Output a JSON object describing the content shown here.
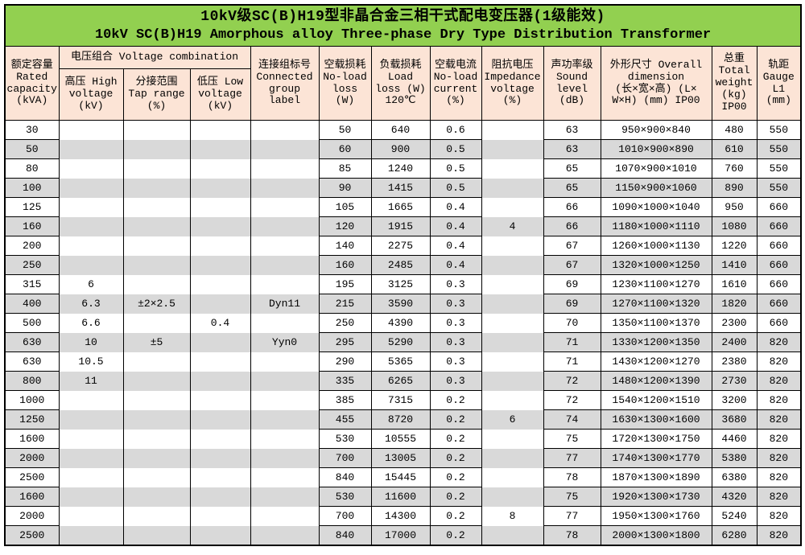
{
  "title": {
    "zh": "10kV级SC(B)H19型非晶合金三相干式配电变压器(1级能效)",
    "en": "10kV SC(B)H19 Amorphous alloy Three-phase Dry Type Distribution Transformer"
  },
  "colors": {
    "title_bg": "#92D050",
    "header_bg": "#FCE4D6",
    "row_alt_bg": "#D9D9D9",
    "border": "#000000"
  },
  "table": {
    "group_header": "电压组合 Voltage combination",
    "headers": {
      "rated_capacity": "额定容量\nRated\ncapacity\n(kVA)",
      "high_voltage": "高压 High\nvoltage\n(kV)",
      "tap_range": "分接范围\nTap range\n(%)",
      "low_voltage": "低压 Low\nvoltage\n(kV)",
      "connected_group": "连接组标号\nConnected\ngroup\nlabel",
      "no_load_loss": "空载损耗\nNo-load\nloss\n(W)",
      "load_loss": "负载损耗\nLoad\nloss (W)\n120℃",
      "no_load_current": "空载电流\nNo-load\ncurrent\n(%)",
      "impedance_voltage": "阻抗电压\nImpedance\nvoltage\n(%)",
      "sound_level": "声功率级\nSound\nlevel\n(dB)",
      "overall_dimension": "外形尺寸 Overall\ndimension\n(长×宽×高) (L×\nW×H) (mm) IP00",
      "total_weight": "总重\nTotal\nweight\n(kg)\nIP00",
      "gauge": "轨距\nGauge\nL1\n(mm)"
    },
    "rows": [
      [
        "30",
        "",
        "",
        "",
        "",
        "50",
        "640",
        "0.6",
        "",
        "63",
        "950×900×840",
        "480",
        "550"
      ],
      [
        "50",
        "",
        "",
        "",
        "",
        "60",
        "900",
        "0.5",
        "",
        "63",
        "1010×900×890",
        "610",
        "550"
      ],
      [
        "80",
        "",
        "",
        "",
        "",
        "85",
        "1240",
        "0.5",
        "",
        "65",
        "1070×900×1010",
        "760",
        "550"
      ],
      [
        "100",
        "",
        "",
        "",
        "",
        "90",
        "1415",
        "0.5",
        "",
        "65",
        "1150×900×1060",
        "890",
        "550"
      ],
      [
        "125",
        "",
        "",
        "",
        "",
        "105",
        "1665",
        "0.4",
        "",
        "66",
        "1090×1000×1040",
        "950",
        "660"
      ],
      [
        "160",
        "",
        "",
        "",
        "",
        "120",
        "1915",
        "0.4",
        "4",
        "66",
        "1180×1000×1110",
        "1080",
        "660"
      ],
      [
        "200",
        "",
        "",
        "",
        "",
        "140",
        "2275",
        "0.4",
        "",
        "67",
        "1260×1000×1130",
        "1220",
        "660"
      ],
      [
        "250",
        "",
        "",
        "",
        "",
        "160",
        "2485",
        "0.4",
        "",
        "67",
        "1320×1000×1250",
        "1410",
        "660"
      ],
      [
        "315",
        "6",
        "",
        "",
        "",
        "195",
        "3125",
        "0.3",
        "",
        "69",
        "1230×1100×1270",
        "1610",
        "660"
      ],
      [
        "400",
        "6.3",
        "±2×2.5",
        "",
        "Dyn11",
        "215",
        "3590",
        "0.3",
        "",
        "69",
        "1270×1100×1320",
        "1820",
        "660"
      ],
      [
        "500",
        "6.6",
        "",
        "0.4",
        "",
        "250",
        "4390",
        "0.3",
        "",
        "70",
        "1350×1100×1370",
        "2300",
        "660"
      ],
      [
        "630",
        "10",
        "±5",
        "",
        "Yyn0",
        "295",
        "5290",
        "0.3",
        "",
        "71",
        "1330×1200×1350",
        "2400",
        "820"
      ],
      [
        "630",
        "10.5",
        "",
        "",
        "",
        "290",
        "5365",
        "0.3",
        "",
        "71",
        "1430×1200×1270",
        "2380",
        "820"
      ],
      [
        "800",
        "11",
        "",
        "",
        "",
        "335",
        "6265",
        "0.3",
        "",
        "72",
        "1480×1200×1390",
        "2730",
        "820"
      ],
      [
        "1000",
        "",
        "",
        "",
        "",
        "385",
        "7315",
        "0.2",
        "",
        "72",
        "1540×1200×1510",
        "3200",
        "820"
      ],
      [
        "1250",
        "",
        "",
        "",
        "",
        "455",
        "8720",
        "0.2",
        "6",
        "74",
        "1630×1300×1600",
        "3680",
        "820"
      ],
      [
        "1600",
        "",
        "",
        "",
        "",
        "530",
        "10555",
        "0.2",
        "",
        "75",
        "1720×1300×1750",
        "4460",
        "820"
      ],
      [
        "2000",
        "",
        "",
        "",
        "",
        "700",
        "13005",
        "0.2",
        "",
        "77",
        "1740×1300×1770",
        "5380",
        "820"
      ],
      [
        "2500",
        "",
        "",
        "",
        "",
        "840",
        "15445",
        "0.2",
        "",
        "78",
        "1870×1300×1890",
        "6380",
        "820"
      ],
      [
        "1600",
        "",
        "",
        "",
        "",
        "530",
        "11600",
        "0.2",
        "",
        "75",
        "1920×1300×1730",
        "4320",
        "820"
      ],
      [
        "2000",
        "",
        "",
        "",
        "",
        "700",
        "14300",
        "0.2",
        "8",
        "77",
        "1950×1300×1760",
        "5240",
        "820"
      ],
      [
        "2500",
        "",
        "",
        "",
        "",
        "840",
        "17000",
        "0.2",
        "",
        "78",
        "2000×1300×1800",
        "6280",
        "820"
      ]
    ]
  }
}
